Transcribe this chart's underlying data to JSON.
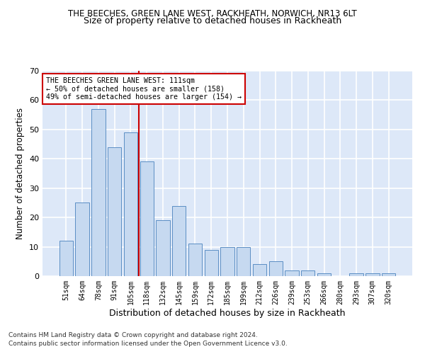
{
  "title1": "THE BEECHES, GREEN LANE WEST, RACKHEATH, NORWICH, NR13 6LT",
  "title2": "Size of property relative to detached houses in Rackheath",
  "xlabel": "Distribution of detached houses by size in Rackheath",
  "ylabel": "Number of detached properties",
  "footer1": "Contains HM Land Registry data © Crown copyright and database right 2024.",
  "footer2": "Contains public sector information licensed under the Open Government Licence v3.0.",
  "categories": [
    "51sqm",
    "64sqm",
    "78sqm",
    "91sqm",
    "105sqm",
    "118sqm",
    "132sqm",
    "145sqm",
    "159sqm",
    "172sqm",
    "185sqm",
    "199sqm",
    "212sqm",
    "226sqm",
    "239sqm",
    "253sqm",
    "266sqm",
    "280sqm",
    "293sqm",
    "307sqm",
    "320sqm"
  ],
  "values": [
    12,
    25,
    57,
    44,
    49,
    39,
    19,
    24,
    11,
    9,
    10,
    10,
    4,
    5,
    2,
    2,
    1,
    0,
    1,
    1,
    1
  ],
  "bar_color": "#c6d9f0",
  "bar_edge_color": "#5b8ec4",
  "vline_x": 4.5,
  "vline_color": "#cc0000",
  "annotation_text": "THE BEECHES GREEN LANE WEST: 111sqm\n← 50% of detached houses are smaller (158)\n49% of semi-detached houses are larger (154) →",
  "annotation_box_color": "white",
  "annotation_box_edge": "#cc0000",
  "ylim": [
    0,
    70
  ],
  "yticks": [
    0,
    10,
    20,
    30,
    40,
    50,
    60,
    70
  ],
  "background_color": "#dde8f8",
  "grid_color": "white",
  "title1_fontsize": 8.5,
  "title2_fontsize": 9,
  "xlabel_fontsize": 9,
  "ylabel_fontsize": 8.5
}
